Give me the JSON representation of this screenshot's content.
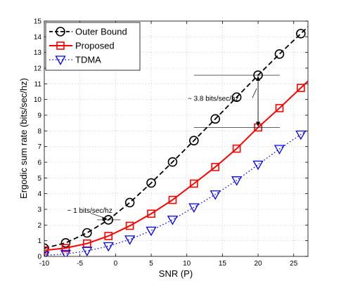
{
  "chart_data": {
    "type": "line",
    "xlabel": "SNR (P)",
    "ylabel": "Ergodic sum rate (bits/sec/hz)",
    "xlim": [
      -10,
      27
    ],
    "ylim": [
      0,
      15
    ],
    "xticks": [
      -10,
      -5,
      0,
      5,
      10,
      15,
      20,
      25
    ],
    "yticks": [
      0,
      1,
      2,
      3,
      4,
      5,
      6,
      7,
      8,
      9,
      10,
      11,
      12,
      13,
      14,
      15
    ],
    "grid": true,
    "legend_position": "top-left",
    "series": [
      {
        "name": "Outer Bound",
        "color": "#000000",
        "dash": "dashed",
        "marker": "circle",
        "x": [
          -10,
          -7,
          -4,
          -1,
          2,
          5,
          8,
          11,
          14,
          17,
          20,
          23,
          26
        ],
        "y": [
          0.52,
          0.86,
          1.5,
          2.33,
          3.43,
          4.68,
          6.02,
          7.38,
          8.76,
          10.15,
          11.55,
          12.9,
          14.2
        ]
      },
      {
        "name": "Proposed",
        "color": "#ff0000",
        "dash": "solid",
        "marker": "square",
        "x": [
          -10,
          -7,
          -4,
          -1,
          2,
          5,
          8,
          11,
          14,
          17,
          20,
          23,
          26
        ],
        "y": [
          0.38,
          0.53,
          0.82,
          1.3,
          1.95,
          2.72,
          3.6,
          4.64,
          5.7,
          6.87,
          8.22,
          9.45,
          10.74
        ]
      },
      {
        "name": "TDMA",
        "color": "#0000ff",
        "dash": "dotted",
        "marker": "triangle-down",
        "x": [
          -10,
          -7,
          -4,
          -1,
          2,
          5,
          8,
          11,
          14,
          17,
          20,
          23,
          26
        ],
        "y": [
          0.06,
          0.16,
          0.35,
          0.65,
          1.08,
          1.64,
          2.34,
          3.13,
          3.95,
          4.85,
          5.85,
          6.85,
          7.77
        ]
      }
    ],
    "annotations": [
      {
        "text": "~ 3.8 bits/sec/hz",
        "x": 12,
        "y": 10.1
      },
      {
        "text": "~ 1 bits/sec/hz",
        "x": -6,
        "y": 2.95
      }
    ]
  }
}
